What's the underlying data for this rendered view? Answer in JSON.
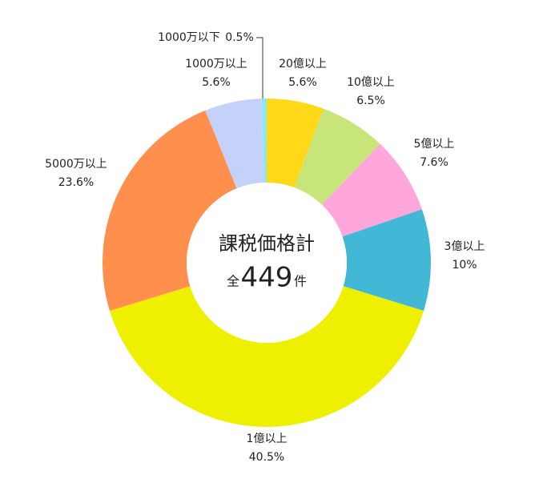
{
  "chart_data": {
    "type": "donut",
    "categories": [
      "20億以上",
      "10億以上",
      "5億以上",
      "3億以上",
      "1億以上",
      "5000万以上",
      "1000万以上",
      "1000万以下"
    ],
    "values": [
      5.6,
      6.5,
      7.6,
      10,
      40.5,
      23.6,
      5.6,
      0.5
    ],
    "value_labels": [
      "5.6%",
      "6.5%",
      "7.6%",
      "10%",
      "40.5%",
      "23.6%",
      "5.6%",
      "0.5%"
    ],
    "colors": [
      "#ffd817",
      "#c8e57a",
      "#ffa6dc",
      "#43b8d6",
      "#eef000",
      "#ff8f4c",
      "#c4d2fa",
      "#8de8f0"
    ],
    "center": {
      "title": "課税価格計",
      "prefix": "全",
      "total": 449,
      "suffix": "件"
    }
  }
}
